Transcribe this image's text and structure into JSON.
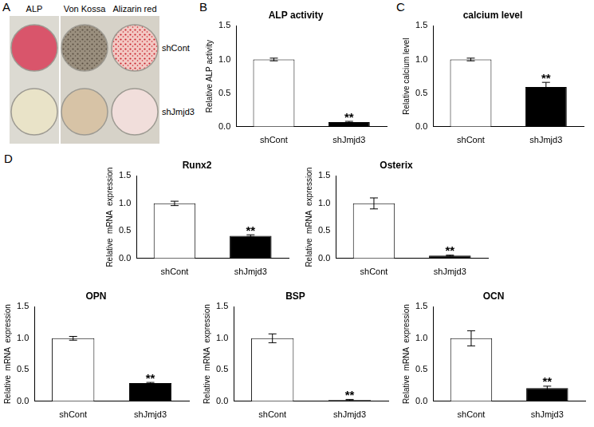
{
  "panel_labels": [
    "A",
    "B",
    "C",
    "D"
  ],
  "stain_panel": {
    "columns": [
      "ALP",
      "Von Kossa",
      "Alizarin red"
    ],
    "rows": [
      "shCont",
      "shJmjd3"
    ]
  },
  "chart_data": [
    {
      "type": "bar",
      "title": "ALP activity",
      "y_label": "Relative ALP activity",
      "categories": [
        "shCont",
        "shJmjd3"
      ],
      "values": [
        1.0,
        0.07
      ],
      "errors": [
        0.02,
        0.01
      ],
      "colors": [
        "#ffffff",
        "#000000"
      ],
      "ylim": [
        0,
        1.5
      ],
      "yticks": [
        {
          "value": 0,
          "label": "0.0"
        },
        0.5,
        {
          "value": 1,
          "label": "1.0"
        },
        1.5
      ],
      "grid": false,
      "annotations": [
        {
          "category": "shJmjd3",
          "text": "**"
        }
      ]
    },
    {
      "type": "bar",
      "title": "calcium level",
      "y_label": "Relative calcium level",
      "categories": [
        "shCont",
        "shJmjd3"
      ],
      "values": [
        1.0,
        0.59
      ],
      "errors": [
        0.02,
        0.07
      ],
      "colors": [
        "#ffffff",
        "#000000"
      ],
      "ylim": [
        0,
        1.5
      ],
      "yticks": [
        {
          "value": 0,
          "label": "0.0"
        },
        0.5,
        {
          "value": 1,
          "label": "1.0"
        },
        1.5
      ],
      "grid": false,
      "annotations": [
        {
          "category": "shJmjd3",
          "text": "**"
        }
      ]
    },
    {
      "type": "bar",
      "title": "Runx2",
      "y_label": "Relative  mRNA  expression",
      "categories": [
        "shCont",
        "shJmjd3"
      ],
      "values": [
        1.0,
        0.41
      ],
      "errors": [
        0.04,
        0.02
      ],
      "colors": [
        "#ffffff",
        "#000000"
      ],
      "ylim": [
        0,
        1.5
      ],
      "yticks": [
        {
          "value": 0,
          "label": "0.0"
        },
        0.5,
        {
          "value": 1,
          "label": "1.0"
        },
        1.5
      ],
      "grid": false,
      "annotations": [
        {
          "category": "shJmjd3",
          "text": "**"
        }
      ]
    },
    {
      "type": "bar",
      "title": "Osterix",
      "y_label": "Relative  mRNA  expression",
      "categories": [
        "shCont",
        "shJmjd3"
      ],
      "values": [
        1.0,
        0.05
      ],
      "errors": [
        0.1,
        0.01
      ],
      "colors": [
        "#ffffff",
        "#000000"
      ],
      "ylim": [
        0,
        1.5
      ],
      "yticks": [
        {
          "value": 0,
          "label": "0.0"
        },
        0.5,
        {
          "value": 1,
          "label": "1.0"
        },
        1.5
      ],
      "grid": false,
      "annotations": [
        {
          "category": "shJmjd3",
          "text": "**"
        }
      ]
    },
    {
      "type": "bar",
      "title": "OPN",
      "y_label": "Relative  mRNA  expression",
      "categories": [
        "shCont",
        "shJmjd3"
      ],
      "values": [
        1.0,
        0.29
      ],
      "errors": [
        0.03,
        0.01
      ],
      "colors": [
        "#ffffff",
        "#000000"
      ],
      "ylim": [
        0,
        1.5
      ],
      "yticks": [
        {
          "value": 0,
          "label": "0.0"
        },
        0.5,
        {
          "value": 1,
          "label": "1.0"
        },
        1.5
      ],
      "grid": false,
      "annotations": [
        {
          "category": "shJmjd3",
          "text": "**"
        }
      ]
    },
    {
      "type": "bar",
      "title": "BSP",
      "y_label": "Relative  mRNA  expression",
      "categories": [
        "shCont",
        "shJmjd3"
      ],
      "values": [
        1.0,
        0.02
      ],
      "errors": [
        0.07,
        0.01
      ],
      "colors": [
        "#ffffff",
        "#000000"
      ],
      "ylim": [
        0,
        1.5
      ],
      "yticks": [
        {
          "value": 0,
          "label": "0.0"
        },
        0.5,
        {
          "value": 1,
          "label": "1.0"
        },
        1.5
      ],
      "grid": false,
      "annotations": [
        {
          "category": "shJmjd3",
          "text": "**"
        }
      ]
    },
    {
      "type": "bar",
      "title": "OCN",
      "y_label": "Relative  mRNA  expression",
      "categories": [
        "shCont",
        "shJmjd3"
      ],
      "values": [
        1.0,
        0.21
      ],
      "errors": [
        0.12,
        0.03
      ],
      "colors": [
        "#ffffff",
        "#000000"
      ],
      "ylim": [
        0,
        1.5
      ],
      "yticks": [
        {
          "value": 0,
          "label": "0.0"
        },
        0.5,
        {
          "value": 1,
          "label": "1.0"
        },
        1.5
      ],
      "grid": false,
      "annotations": [
        {
          "category": "shJmjd3",
          "text": "**"
        }
      ]
    }
  ]
}
